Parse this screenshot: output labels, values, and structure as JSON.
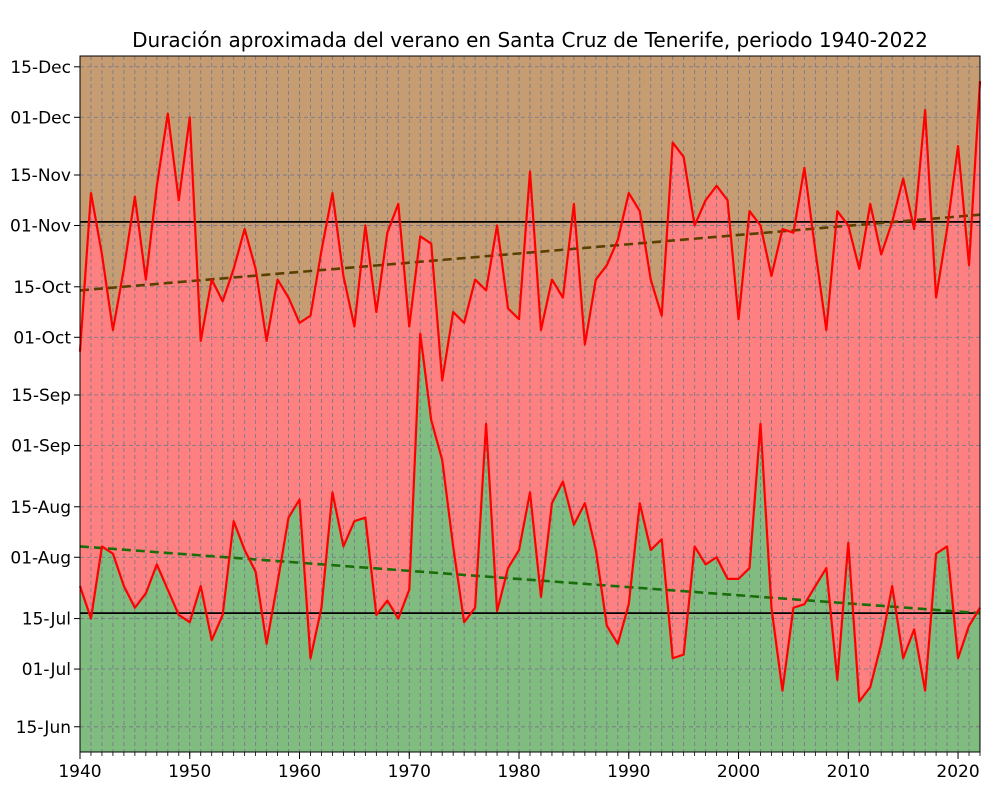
{
  "chart_data": {
    "type": "area",
    "title": "Duración aproximada del verano en Santa Cruz de Tenerife, periodo 1940-2022",
    "xlabel": "",
    "ylabel": "",
    "xlim": [
      1940,
      2022
    ],
    "x_ticks": [
      1940,
      1950,
      1960,
      1970,
      1980,
      1990,
      2000,
      2010,
      2020
    ],
    "ylim_days": [
      159,
      352
    ],
    "y_ticks": [
      {
        "label": "15-Jun",
        "day": 166
      },
      {
        "label": "01-Jul",
        "day": 182
      },
      {
        "label": "15-Jul",
        "day": 196
      },
      {
        "label": "01-Aug",
        "day": 213
      },
      {
        "label": "15-Aug",
        "day": 227
      },
      {
        "label": "01-Sep",
        "day": 244
      },
      {
        "label": "15-Sep",
        "day": 258
      },
      {
        "label": "01-Oct",
        "day": 274
      },
      {
        "label": "15-Oct",
        "day": 288
      },
      {
        "label": "01-Nov",
        "day": 305
      },
      {
        "label": "15-Nov",
        "day": 319
      },
      {
        "label": "01-Dec",
        "day": 335
      },
      {
        "label": "15-Dec",
        "day": 349
      }
    ],
    "x": [
      1940,
      1941,
      1942,
      1943,
      1944,
      1945,
      1946,
      1947,
      1948,
      1949,
      1950,
      1951,
      1952,
      1953,
      1954,
      1955,
      1956,
      1957,
      1958,
      1959,
      1960,
      1961,
      1962,
      1963,
      1964,
      1965,
      1966,
      1967,
      1968,
      1969,
      1970,
      1971,
      1972,
      1973,
      1974,
      1975,
      1976,
      1977,
      1978,
      1979,
      1980,
      1981,
      1982,
      1983,
      1984,
      1985,
      1986,
      1987,
      1988,
      1989,
      1990,
      1991,
      1992,
      1993,
      1994,
      1995,
      1996,
      1997,
      1998,
      1999,
      2000,
      2001,
      2002,
      2003,
      2004,
      2005,
      2006,
      2007,
      2008,
      2009,
      2010,
      2011,
      2012,
      2013,
      2014,
      2015,
      2016,
      2017,
      2018,
      2019,
      2020,
      2021,
      2022
    ],
    "series": [
      {
        "role": "summer_start",
        "values": [
          205,
          196,
          216,
          214,
          205,
          199,
          203,
          211,
          204,
          197,
          195,
          205,
          190,
          197,
          223,
          215,
          209,
          189,
          206,
          224,
          229,
          185,
          199,
          231,
          216,
          223,
          224,
          197,
          201,
          196,
          204,
          275,
          251,
          240,
          216,
          195,
          199,
          250,
          198,
          210,
          215,
          231,
          202,
          228,
          234,
          222,
          228,
          215,
          194,
          189,
          200,
          228,
          215,
          218,
          185,
          186,
          216,
          211,
          213,
          207,
          207,
          210,
          250,
          199,
          176,
          199,
          200,
          205,
          210,
          179,
          217,
          173,
          177,
          189,
          205,
          185,
          193,
          176,
          214,
          216,
          185,
          194,
          199
        ]
      },
      {
        "role": "summer_end",
        "values": [
          270,
          314,
          297,
          276,
          293,
          313,
          290,
          316,
          336,
          312,
          335,
          273,
          290,
          284,
          293,
          304,
          293,
          273,
          290,
          285,
          278,
          280,
          298,
          314,
          291,
          277,
          305,
          281,
          303,
          311,
          277,
          302,
          300,
          262,
          281,
          278,
          290,
          287,
          305,
          282,
          279,
          320,
          276,
          290,
          285,
          311,
          272,
          290,
          294,
          301,
          314,
          309,
          290,
          280,
          328,
          324,
          305,
          312,
          316,
          312,
          279,
          309,
          305,
          291,
          304,
          303,
          321,
          298,
          276,
          309,
          305,
          293,
          311,
          297,
          306,
          318,
          304,
          337,
          285,
          304,
          327,
          294,
          345
        ]
      }
    ],
    "trend_lines": [
      {
        "role": "start_trend",
        "from": [
          1940,
          216
        ],
        "to": [
          2022,
          197.5
        ],
        "color": "#1a6e0a",
        "style": "dashed"
      },
      {
        "role": "end_trend",
        "from": [
          1940,
          287
        ],
        "to": [
          2022,
          308
        ],
        "color": "#5a4000",
        "style": "dashed"
      }
    ],
    "reference_lines": [
      {
        "role": "start_reference",
        "day": 197.5,
        "color": "#000000"
      },
      {
        "role": "end_reference",
        "day": 306,
        "color": "#000000"
      }
    ],
    "colors": {
      "summer_fill": "#ff8080",
      "before_summer_fill": "#80bb80",
      "after_summer_fill": "#c69c72",
      "data_line": "#ff0000"
    },
    "grid": true
  }
}
